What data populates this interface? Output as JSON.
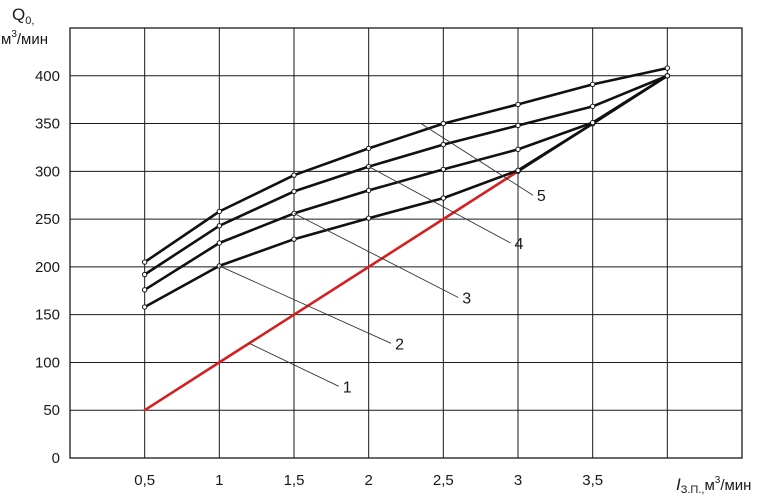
{
  "chart_data": {
    "type": "line",
    "grid": true,
    "ylabel": {
      "main": "Q",
      "sub": "0,",
      "unit": "м",
      "sup": "3",
      "rest": "/мин"
    },
    "xlabel": {
      "main": "I",
      "sub": "З.П.,",
      "unit": "м",
      "sup": "3",
      "rest": "/мин"
    },
    "x_ticks": [
      0.5,
      1,
      1.5,
      2,
      2.5,
      3,
      3.5
    ],
    "x_tick_labels": [
      "0,5",
      "1",
      "1,5",
      "2",
      "2,5",
      "3",
      "3,5"
    ],
    "x_range": [
      0,
      4.5
    ],
    "y_ticks": [
      0,
      50,
      100,
      150,
      200,
      250,
      300,
      350,
      400
    ],
    "y_tick_labels": [
      "0",
      "50",
      "100",
      "150",
      "200",
      "250",
      "300",
      "350",
      "400"
    ],
    "y_range": [
      0,
      450
    ],
    "series": [
      {
        "name": "1",
        "color": "#d42020",
        "x": [
          0.5,
          1,
          1.5,
          2,
          2.5,
          3
        ],
        "y": [
          50,
          100,
          150,
          200,
          250,
          300
        ]
      },
      {
        "name": "1",
        "color": "#111111",
        "x": [
          3,
          3.5,
          4
        ],
        "y": [
          300,
          350,
          400
        ]
      },
      {
        "name": "2",
        "color": "#111111",
        "x": [
          0.5,
          1,
          1.5,
          2,
          2.5,
          3,
          3.5,
          4
        ],
        "y": [
          158,
          201,
          229,
          251,
          272,
          301,
          350,
          400
        ]
      },
      {
        "name": "3",
        "color": "#111111",
        "x": [
          0.5,
          1,
          1.5,
          2,
          2.5,
          3,
          3.5,
          4
        ],
        "y": [
          176,
          225,
          256,
          280,
          302,
          323,
          351,
          400
        ]
      },
      {
        "name": "4",
        "color": "#111111",
        "x": [
          0.5,
          1,
          1.5,
          2,
          2.5,
          3,
          3.5,
          4
        ],
        "y": [
          192,
          243,
          279,
          305,
          328,
          348,
          368,
          400
        ]
      },
      {
        "name": "5",
        "color": "#111111",
        "x": [
          0.5,
          1,
          1.5,
          2,
          2.5,
          3,
          3.5,
          4
        ],
        "y": [
          205,
          258,
          296,
          324,
          350,
          370,
          391,
          408
        ]
      }
    ],
    "annotations": [
      {
        "text": "1",
        "from": [
          1.2,
          120
        ],
        "to": [
          1.8,
          75
        ]
      },
      {
        "text": "2",
        "from": [
          1.0,
          201
        ],
        "to": [
          2.15,
          120
        ]
      },
      {
        "text": "3",
        "from": [
          1.5,
          256
        ],
        "to": [
          2.6,
          168
        ]
      },
      {
        "text": "4",
        "from": [
          2.0,
          305
        ],
        "to": [
          2.95,
          225
        ]
      },
      {
        "text": "5",
        "from": [
          2.35,
          350
        ],
        "to": [
          3.1,
          275
        ]
      }
    ]
  }
}
